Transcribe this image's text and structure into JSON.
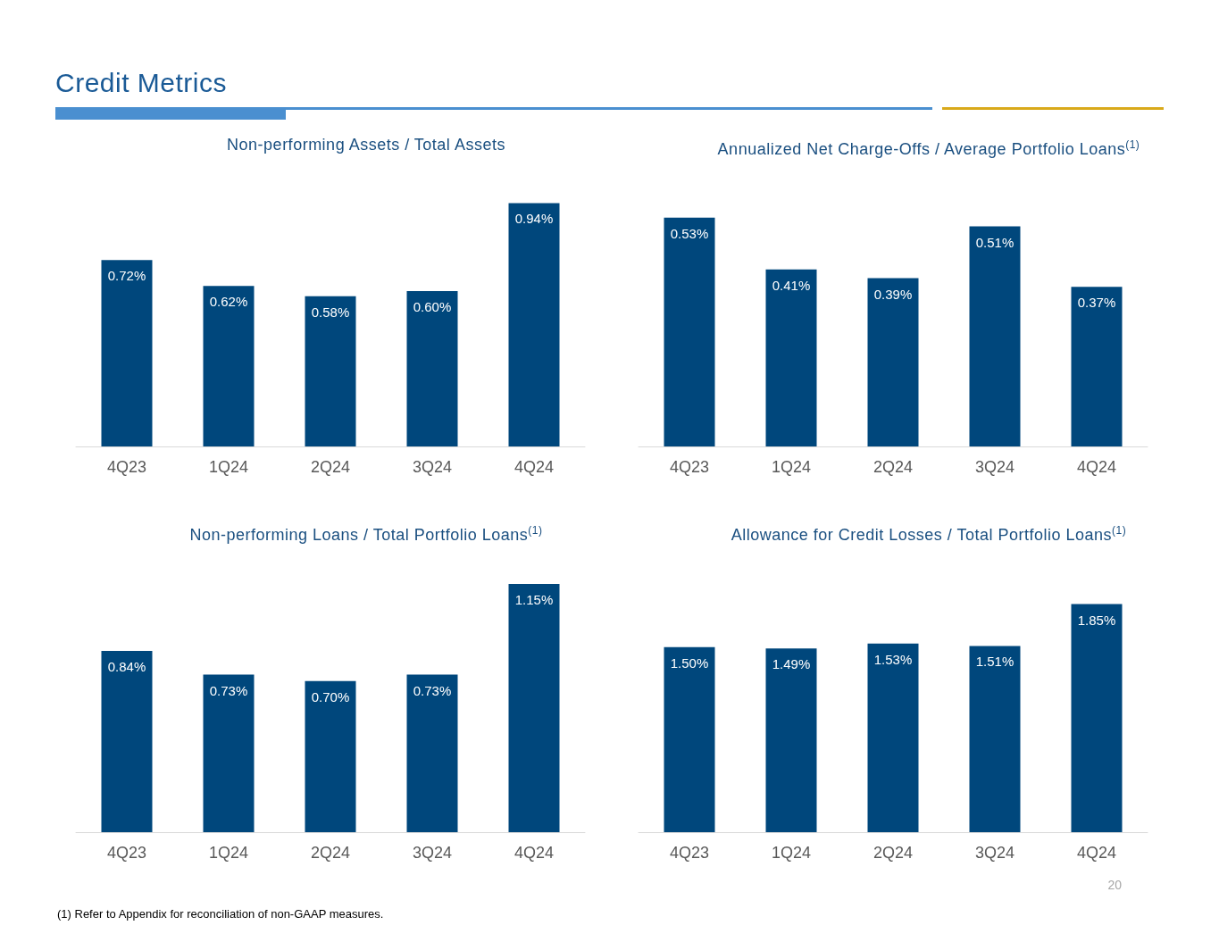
{
  "chart_data": [
    {
      "type": "other",
      "title": "Credit Metrics",
      "annotations": [
        "20",
        "(1) Refer to Appendix for reconciliation of non-GAAP measures."
      ]
    },
    {
      "type": "bar",
      "title": "Non-performing Assets /  Total Assets",
      "categories": [
        "4Q23",
        "1Q24",
        "2Q24",
        "3Q24",
        "4Q24"
      ],
      "values": [
        0.72,
        0.62,
        0.58,
        0.6,
        0.94
      ],
      "value_labels": [
        "0.72%",
        "0.62%",
        "0.58%",
        "0.60%",
        "0.94%"
      ],
      "color": "#00477c"
    },
    {
      "type": "bar",
      "title": "Annualized Net Charge-Offs / Average Portfolio Loans$^{(1)}$",
      "categories": [
        "4Q23",
        "1Q24",
        "2Q24",
        "3Q24",
        "4Q24"
      ],
      "values": [
        0.53,
        0.41,
        0.39,
        0.51,
        0.37
      ],
      "value_labels": [
        "0.53%",
        "0.41%",
        "0.39%",
        "0.51%",
        "0.37%"
      ],
      "color": "#00477c"
    },
    {
      "type": "bar",
      "title": "Non-performing Loans /  Total Portfolio Loans$^{(1)}$",
      "categories": [
        "4Q23",
        "1Q24",
        "2Q24",
        "3Q24",
        "4Q24"
      ],
      "values": [
        0.84,
        0.73,
        0.7,
        0.73,
        1.15
      ],
      "value_labels": [
        "0.84%",
        "0.73%",
        "0.70%",
        "0.73%",
        "1.15%"
      ],
      "color": "#00477c"
    },
    {
      "type": "bar",
      "title": "Allowance for Credit Losses / Total Portfolio Loans$^{(1)}$",
      "categories": [
        "4Q23",
        "1Q24",
        "2Q24",
        "3Q24",
        "4Q24"
      ],
      "values": [
        1.5,
        1.49,
        1.53,
        1.51,
        1.85
      ],
      "value_labels": [
        "1.50%",
        "1.49%",
        "1.53%",
        "1.51%",
        "1.85%"
      ],
      "color": "#00477c"
    }
  ]
}
